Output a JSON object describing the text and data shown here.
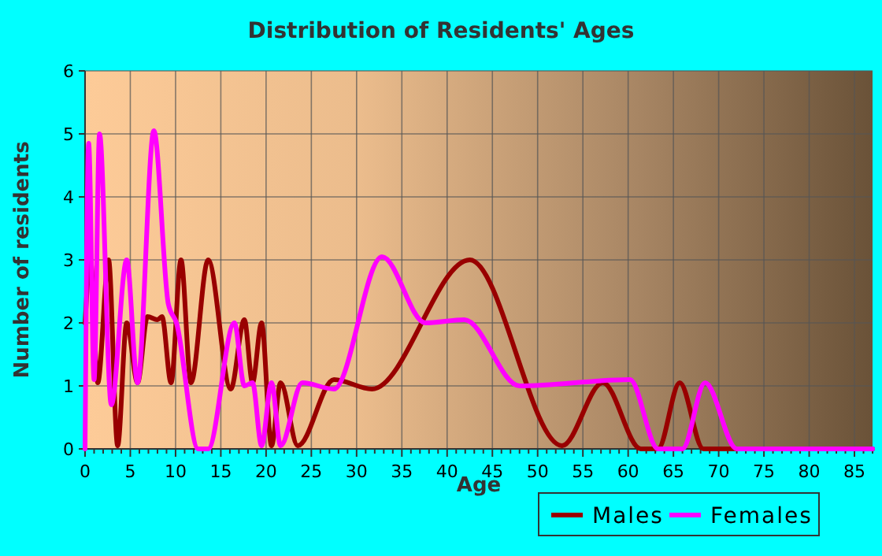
{
  "chart_data": {
    "type": "line",
    "title": "Distribution of Residents' Ages",
    "xlabel": "Age",
    "ylabel": "Number of residents",
    "xlim": [
      0,
      87
    ],
    "xticks": [
      0,
      5,
      10,
      15,
      20,
      25,
      30,
      35,
      40,
      45,
      50,
      55,
      60,
      65,
      70,
      75,
      80,
      85
    ],
    "ylim": [
      0,
      6
    ],
    "yticks": [
      0,
      1,
      2,
      3,
      4,
      5,
      6
    ],
    "grid": true,
    "legend": "bottom right",
    "series": [
      {
        "name": "Males",
        "color": "#990000",
        "x": [
          0,
          0.6,
          1.4,
          2.6,
          3.6,
          4.6,
          5.8,
          6.9,
          8.0,
          8.5,
          9.5,
          10.6,
          11.7,
          13.6,
          16.1,
          17.6,
          18.5,
          19.5,
          20.6,
          21.6,
          23.5,
          27.5,
          31.7,
          42.5,
          52.7,
          57.2,
          61.4,
          63.3,
          65.7,
          68.3,
          87
        ],
        "values": [
          2.0,
          3.0,
          1.05,
          3.0,
          0.05,
          2.0,
          1.05,
          2.1,
          2.05,
          2.1,
          1.05,
          3.0,
          1.05,
          3.0,
          0.95,
          2.05,
          1.05,
          2.0,
          0.05,
          1.05,
          0.05,
          1.1,
          0.95,
          3.0,
          0.05,
          1.05,
          0,
          0,
          1.05,
          0,
          0
        ]
      },
      {
        "name": "Females",
        "color": "#ff00ff",
        "x": [
          0,
          0.4,
          1.0,
          1.6,
          2.9,
          4.6,
          5.8,
          7.6,
          9.2,
          10.1,
          12.5,
          13.6,
          16.5,
          17.6,
          18.5,
          19.5,
          20.6,
          21.6,
          24.0,
          27.5,
          32.8,
          37.6,
          41.9,
          48.0,
          60.2,
          63.3,
          66.0,
          68.5,
          72,
          87
        ],
        "values": [
          0,
          4.85,
          1.1,
          5.0,
          0.7,
          3.0,
          1.05,
          5.05,
          2.3,
          2.0,
          0,
          0,
          2.0,
          1.0,
          1.05,
          0.05,
          1.05,
          0.05,
          1.05,
          0.95,
          3.05,
          2.0,
          2.05,
          1.0,
          1.1,
          0,
          0,
          1.05,
          0,
          0
        ]
      }
    ]
  }
}
